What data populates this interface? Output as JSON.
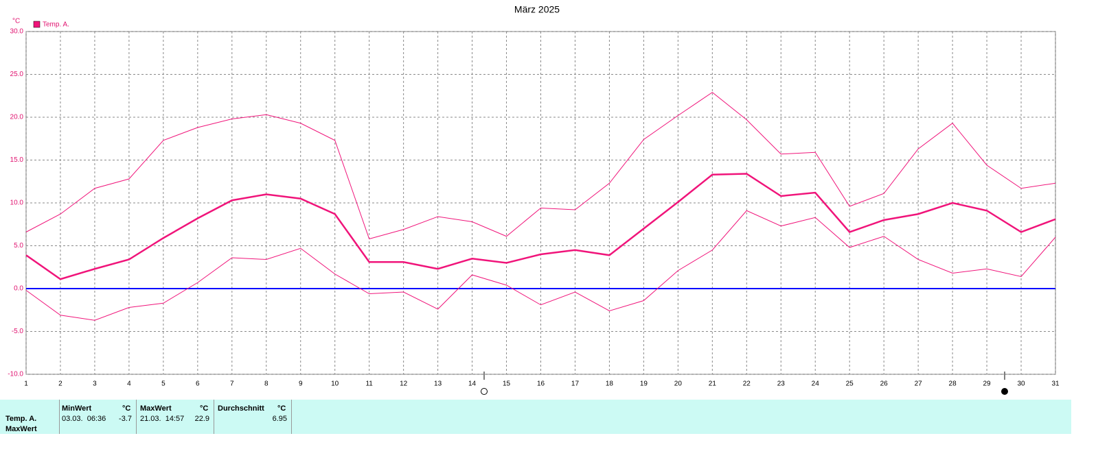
{
  "chart_data": {
    "type": "line",
    "title": "März 2025",
    "y_label": "°C",
    "x": [
      1,
      2,
      3,
      4,
      5,
      6,
      7,
      8,
      9,
      10,
      11,
      12,
      13,
      14,
      15,
      16,
      17,
      18,
      19,
      20,
      21,
      22,
      23,
      24,
      25,
      26,
      27,
      28,
      29,
      30,
      31
    ],
    "xlim": [
      1,
      31
    ],
    "xticks": [
      1,
      2,
      3,
      4,
      5,
      6,
      7,
      8,
      9,
      10,
      11,
      12,
      13,
      14,
      15,
      16,
      17,
      18,
      19,
      20,
      21,
      22,
      23,
      24,
      25,
      26,
      27,
      28,
      29,
      30,
      31
    ],
    "ylim": [
      -10,
      30
    ],
    "yticks": [
      {
        "value": -10,
        "label": "-10.0"
      },
      {
        "value": -5,
        "label": "-5.0"
      },
      {
        "value": 0,
        "label": "0.0"
      },
      {
        "value": 5,
        "label": "5.0"
      },
      {
        "value": 10,
        "label": "10.0"
      },
      {
        "value": 15,
        "label": "15.0"
      },
      {
        "value": 20,
        "label": "20.0"
      },
      {
        "value": 25,
        "label": "25.0"
      },
      {
        "value": 30,
        "label": "30.0"
      }
    ],
    "grid": true,
    "zero_line_color": "#0000ff",
    "series": [
      {
        "name": "Temp. A.",
        "color": "#f0147a",
        "values": [
          3.9,
          1.1,
          2.3,
          3.4,
          5.9,
          8.2,
          10.3,
          11.0,
          10.5,
          8.7,
          3.1,
          3.1,
          2.3,
          3.5,
          3.0,
          4.0,
          4.5,
          3.9,
          7.0,
          10.1,
          13.3,
          13.4,
          10.8,
          11.2,
          6.6,
          8.0,
          8.7,
          10.0,
          9.1,
          6.6,
          8.1
        ]
      },
      {
        "color": "#f0147a",
        "values": [
          6.6,
          8.7,
          11.7,
          12.8,
          17.3,
          18.8,
          19.8,
          20.3,
          19.3,
          17.3,
          5.8,
          6.9,
          8.4,
          7.8,
          6.1,
          9.4,
          9.2,
          12.3,
          17.4,
          20.2,
          22.9,
          19.7,
          15.7,
          15.9,
          9.6,
          11.1,
          16.3,
          19.3,
          14.4,
          11.7,
          12.3
        ]
      },
      {
        "color": "#f0147a",
        "values": [
          -0.2,
          -3.1,
          -3.7,
          -2.2,
          -1.7,
          0.7,
          3.6,
          3.4,
          4.7,
          1.7,
          -0.6,
          -0.4,
          -2.4,
          1.6,
          0.4,
          -1.9,
          -0.4,
          -2.6,
          -1.4,
          2.1,
          4.5,
          9.1,
          7.3,
          8.3,
          4.8,
          6.1,
          3.4,
          1.8,
          2.3,
          1.4,
          6.0
        ]
      }
    ]
  },
  "table": {
    "header": [
      "MinWert",
      "°C",
      "MaxWert",
      "°C",
      "Durchschnitt",
      "°C"
    ],
    "row_labels": [
      "Temp. A.",
      "MaxWert"
    ],
    "rows": [
      [
        "03.03.  06:36",
        "-3.7",
        "21.03.  14:57",
        "22.9",
        "6.95"
      ]
    ]
  }
}
